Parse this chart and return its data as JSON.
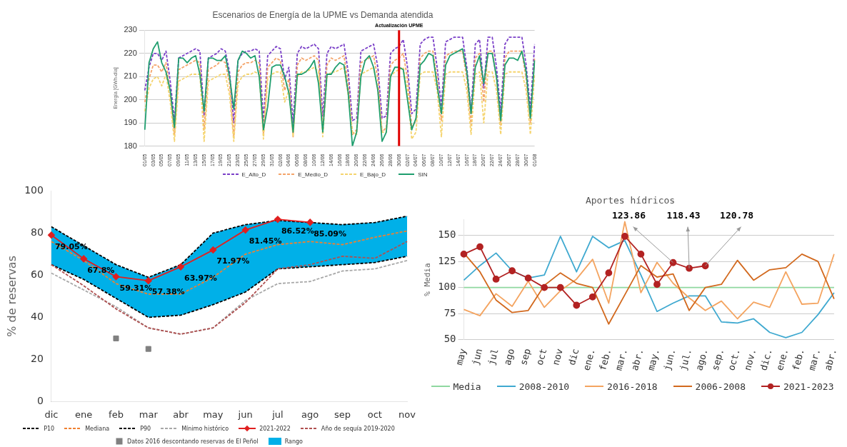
{
  "chart_data": [
    {
      "type": "line",
      "title": "Escenarios de Energía de la UPME vs Demanda atendida",
      "ylabel": "Energía [GWh-día]",
      "categories": [
        "01/05",
        null,
        "03/05",
        null,
        "05/05",
        null,
        "07/05",
        null,
        "09/05",
        null,
        "11/05",
        null,
        "13/05",
        null,
        "15/05",
        null,
        "17/05",
        null,
        "19/05",
        null,
        "21/05",
        null,
        "23/05",
        null,
        "25/05",
        null,
        "27/05",
        null,
        "29/05",
        null,
        "31/05",
        null,
        "02/06",
        null,
        "04/06",
        null,
        "06/06",
        null,
        "08/06",
        null,
        "10/06",
        null,
        "12/06",
        null,
        "14/06",
        null,
        "16/06",
        null,
        "18/06",
        null,
        "20/06",
        null,
        "22/06",
        null,
        "24/06",
        null,
        "26/06",
        null,
        "28/06",
        null,
        "30/06",
        null,
        "02/07",
        null,
        "04/07",
        null,
        "06/07",
        null,
        "08/07",
        null,
        "10/07",
        null,
        "12/07",
        null,
        "14/07",
        null,
        "16/07",
        null,
        "18/07",
        null,
        "20/07",
        null,
        "22/07",
        null,
        "24/07",
        null,
        "26/07",
        null,
        "28/07",
        null,
        "30/07",
        null,
        "01/08"
      ],
      "series": [
        {
          "name": "E_Alto_D",
          "color": "#7a3fc8",
          "line_style": "dashed",
          "values": [
            204,
            214,
            220,
            220,
            217,
            221,
            208,
            191,
            218,
            219,
            220,
            221,
            222,
            221,
            193,
            218,
            219,
            220,
            222,
            221,
            212,
            190,
            217,
            220,
            221,
            221,
            222,
            221,
            191,
            219,
            221,
            223,
            222,
            209,
            214,
            190,
            220,
            223,
            222,
            223,
            224,
            222,
            193,
            220,
            223,
            222,
            223,
            224,
            212,
            191,
            192,
            221,
            222,
            223,
            224,
            214,
            192,
            193,
            220,
            222,
            223,
            226,
            214,
            194,
            196,
            224,
            226,
            227,
            227,
            214,
            197,
            225,
            226,
            227,
            227,
            227,
            214,
            195,
            224,
            226,
            205,
            227,
            227,
            214,
            195,
            224,
            227,
            227,
            227,
            227,
            215,
            196,
            224
          ]
        },
        {
          "name": "E_Medio_D",
          "color": "#f4a46a",
          "line_style": "dashed",
          "values": [
            199,
            209,
            215,
            215,
            212,
            216,
            203,
            185,
            213,
            214,
            215,
            216,
            217,
            216,
            187,
            213,
            214,
            215,
            217,
            216,
            207,
            184,
            212,
            215,
            216,
            216,
            217,
            216,
            185,
            214,
            216,
            218,
            217,
            204,
            209,
            184,
            215,
            218,
            217,
            218,
            219,
            217,
            187,
            215,
            218,
            217,
            218,
            219,
            207,
            185,
            187,
            216,
            217,
            218,
            219,
            209,
            186,
            188,
            215,
            217,
            218,
            220,
            209,
            188,
            191,
            218,
            220,
            221,
            221,
            209,
            191,
            219,
            220,
            221,
            221,
            221,
            209,
            189,
            218,
            220,
            199,
            221,
            221,
            209,
            189,
            218,
            221,
            221,
            221,
            221,
            209,
            190,
            218
          ]
        },
        {
          "name": "E_Bajo_D",
          "color": "#f5d46e",
          "line_style": "dashed",
          "values": [
            195,
            205,
            209,
            210,
            206,
            211,
            199,
            182,
            208,
            209,
            210,
            211,
            211,
            211,
            182,
            208,
            209,
            210,
            211,
            211,
            202,
            182,
            207,
            210,
            211,
            211,
            212,
            211,
            183,
            209,
            211,
            212,
            212,
            199,
            204,
            184,
            210,
            212,
            212,
            213,
            214,
            212,
            184,
            210,
            212,
            212,
            213,
            214,
            202,
            186,
            185,
            211,
            212,
            213,
            214,
            204,
            186,
            186,
            210,
            212,
            213,
            214,
            204,
            183,
            186,
            211,
            212,
            212,
            212,
            204,
            184,
            211,
            212,
            212,
            212,
            212,
            204,
            185,
            211,
            212,
            190,
            212,
            212,
            204,
            185,
            211,
            212,
            212,
            212,
            212,
            204,
            185,
            211
          ]
        },
        {
          "name": "SIN",
          "color": "#1e9e6e",
          "line_style": "solid",
          "values": [
            187,
            216,
            222,
            225,
            216,
            212,
            204,
            188,
            218,
            218,
            216,
            218,
            219,
            211,
            195,
            218,
            218,
            217,
            217,
            219,
            210,
            196,
            217,
            221,
            220,
            218,
            219,
            210,
            187,
            197,
            214,
            215,
            215,
            210,
            203,
            186,
            211,
            211,
            212,
            214,
            217,
            207,
            186,
            211,
            211,
            214,
            216,
            215,
            203,
            180,
            186,
            210,
            217,
            219,
            214,
            204,
            182,
            186,
            210,
            214,
            214,
            213,
            200,
            187,
            192,
            215,
            217,
            220,
            219,
            206,
            194,
            215,
            219,
            220,
            221,
            222,
            212,
            194,
            214,
            219,
            207,
            220,
            220,
            210,
            191,
            215,
            218,
            218,
            217,
            221,
            212,
            192,
            217
          ]
        }
      ],
      "ylim": [
        180,
        230
      ],
      "yticks": [
        180,
        190,
        200,
        210,
        220,
        230
      ],
      "grid": "y",
      "legend": "bottom",
      "ref_lines": [
        {
          "axis": "x",
          "value": "30/06",
          "label": "Actualización UPME",
          "color": "#e00000"
        }
      ]
    },
    {
      "type": "line",
      "ylabel": "% de reservas",
      "categories": [
        "dic",
        "ene",
        "feb",
        "mar",
        "abr",
        "may",
        "jun",
        "jul",
        "ago",
        "sep",
        "oct",
        "nov"
      ],
      "series": [
        {
          "name": "P10",
          "color": "#000000",
          "line_style": "dashed",
          "values": [
            65,
            58,
            49,
            40,
            41,
            46,
            52,
            63,
            64,
            65,
            66,
            69
          ]
        },
        {
          "name": "Mediana",
          "color": "#f08030",
          "line_style": "dashed",
          "values": [
            76,
            67,
            56,
            51,
            51,
            59,
            70,
            74.5,
            76,
            74.5,
            78,
            81
          ]
        },
        {
          "name": "P90",
          "color": "#000000",
          "line_style": "dashed",
          "values": [
            83,
            74,
            65,
            59,
            65,
            80,
            84,
            86,
            85,
            84,
            85,
            88
          ]
        },
        {
          "name": "Mínimo histórico",
          "color": "#a8a8a8",
          "line_style": "dashed",
          "values": [
            61,
            53,
            45,
            35,
            32,
            35,
            48,
            56,
            57,
            62,
            63,
            67
          ]
        },
        {
          "name": "2021-2022",
          "color": "#e02020",
          "line_style": "solid",
          "marker": "diamond",
          "values": [
            79.05,
            67.8,
            59.31,
            57.38,
            63.97,
            71.97,
            81.45,
            86.52,
            85.09,
            null,
            null,
            null
          ],
          "value_labels": [
            "79.05%",
            "67.8%",
            "59.31%",
            "57.38%",
            "63.97%",
            "71.97%",
            "81.45%",
            "86.52%",
            "85.09%",
            null,
            null,
            null
          ]
        },
        {
          "name": "Año de sequía 2019-2020",
          "color": "#b05050",
          "line_style": "dashed",
          "values": [
            65,
            55,
            44,
            35,
            32,
            35,
            47,
            63,
            65,
            69,
            68,
            76
          ]
        },
        {
          "name": "Datos 2016 descontando reservas de El Peñol",
          "type": "scatter",
          "color": "#808080",
          "marker": "square",
          "x": [
            "feb",
            "mar"
          ],
          "values": [
            30,
            25
          ]
        },
        {
          "name": "Rango",
          "type": "area",
          "color": "#00b0e8",
          "values": [
            null,
            null,
            null,
            null,
            null,
            null,
            null,
            null,
            null,
            null,
            null,
            null
          ],
          "lower": [
            65,
            58,
            49,
            40,
            41,
            46,
            52,
            63,
            64,
            65,
            66,
            69
          ],
          "upper": [
            83,
            74,
            65,
            59,
            65,
            80,
            84,
            86,
            85,
            84,
            85,
            88
          ]
        }
      ],
      "ylim": [
        0,
        100
      ],
      "yticks": [
        0,
        20,
        40,
        60,
        80,
        100
      ],
      "legend": "bottom"
    },
    {
      "type": "line",
      "title": "Aportes hídricos",
      "ylabel": "% Media",
      "categories": [
        "may",
        "jun",
        "jul",
        "ago",
        "sep",
        "oct",
        "nov",
        "dic",
        "ene.",
        "feb.",
        "mar.",
        "abr.",
        "may.",
        "jun.",
        "jul.",
        "ago.",
        "sep.",
        "oct.",
        "nov.",
        "dic.",
        "ene.",
        "feb.",
        "mar.",
        "abr."
      ],
      "series": [
        {
          "name": "Media",
          "color": "#90d8a0",
          "values": [
            100,
            100,
            100,
            100,
            100,
            100,
            100,
            100,
            100,
            100,
            100,
            100,
            100,
            100,
            100,
            100,
            100,
            100,
            100,
            100,
            100,
            100,
            100,
            100
          ]
        },
        {
          "name": "2008-2010",
          "color": "#3fa9d0",
          "values": [
            107,
            121,
            133,
            116,
            109,
            112,
            149,
            115,
            149,
            138,
            145,
            112,
            77,
            85,
            92,
            92,
            67,
            66,
            70,
            57,
            52,
            57,
            74,
            95
          ]
        },
        {
          "name": "2016-2018",
          "color": "#f4a460",
          "values": [
            79,
            73,
            94,
            82,
            106,
            81,
            97,
            108,
            127,
            85,
            163,
            95,
            124,
            104,
            90,
            78,
            87,
            70,
            86,
            81,
            115,
            84,
            85,
            132
          ]
        },
        {
          "name": "2006-2008",
          "color": "#d2691e",
          "values": [
            133,
            115,
            88,
            76,
            78,
            102,
            114,
            104,
            100,
            65,
            93,
            121,
            110,
            113,
            78,
            100,
            103,
            126,
            107,
            117,
            119,
            132,
            125,
            89
          ]
        },
        {
          "name": "2021-2023",
          "color": "#b22222",
          "marker": "circle",
          "values": [
            132,
            139,
            108,
            116,
            109,
            100,
            100,
            83,
            91,
            114,
            149,
            132,
            103,
            123.86,
            118.43,
            120.78,
            null,
            null,
            null,
            null,
            null,
            null,
            null,
            null
          ]
        }
      ],
      "ylim": [
        50,
        165
      ],
      "yticks": [
        50,
        75,
        100,
        125,
        150
      ],
      "grid": "y",
      "legend": "bottom",
      "annotations": [
        {
          "text": "123.86",
          "x": "jun.",
          "y": 123.86
        },
        {
          "text": "118.43",
          "x": "jul.",
          "y": 118.43
        },
        {
          "text": "120.78",
          "x": "ago.",
          "y": 120.78
        }
      ]
    }
  ]
}
